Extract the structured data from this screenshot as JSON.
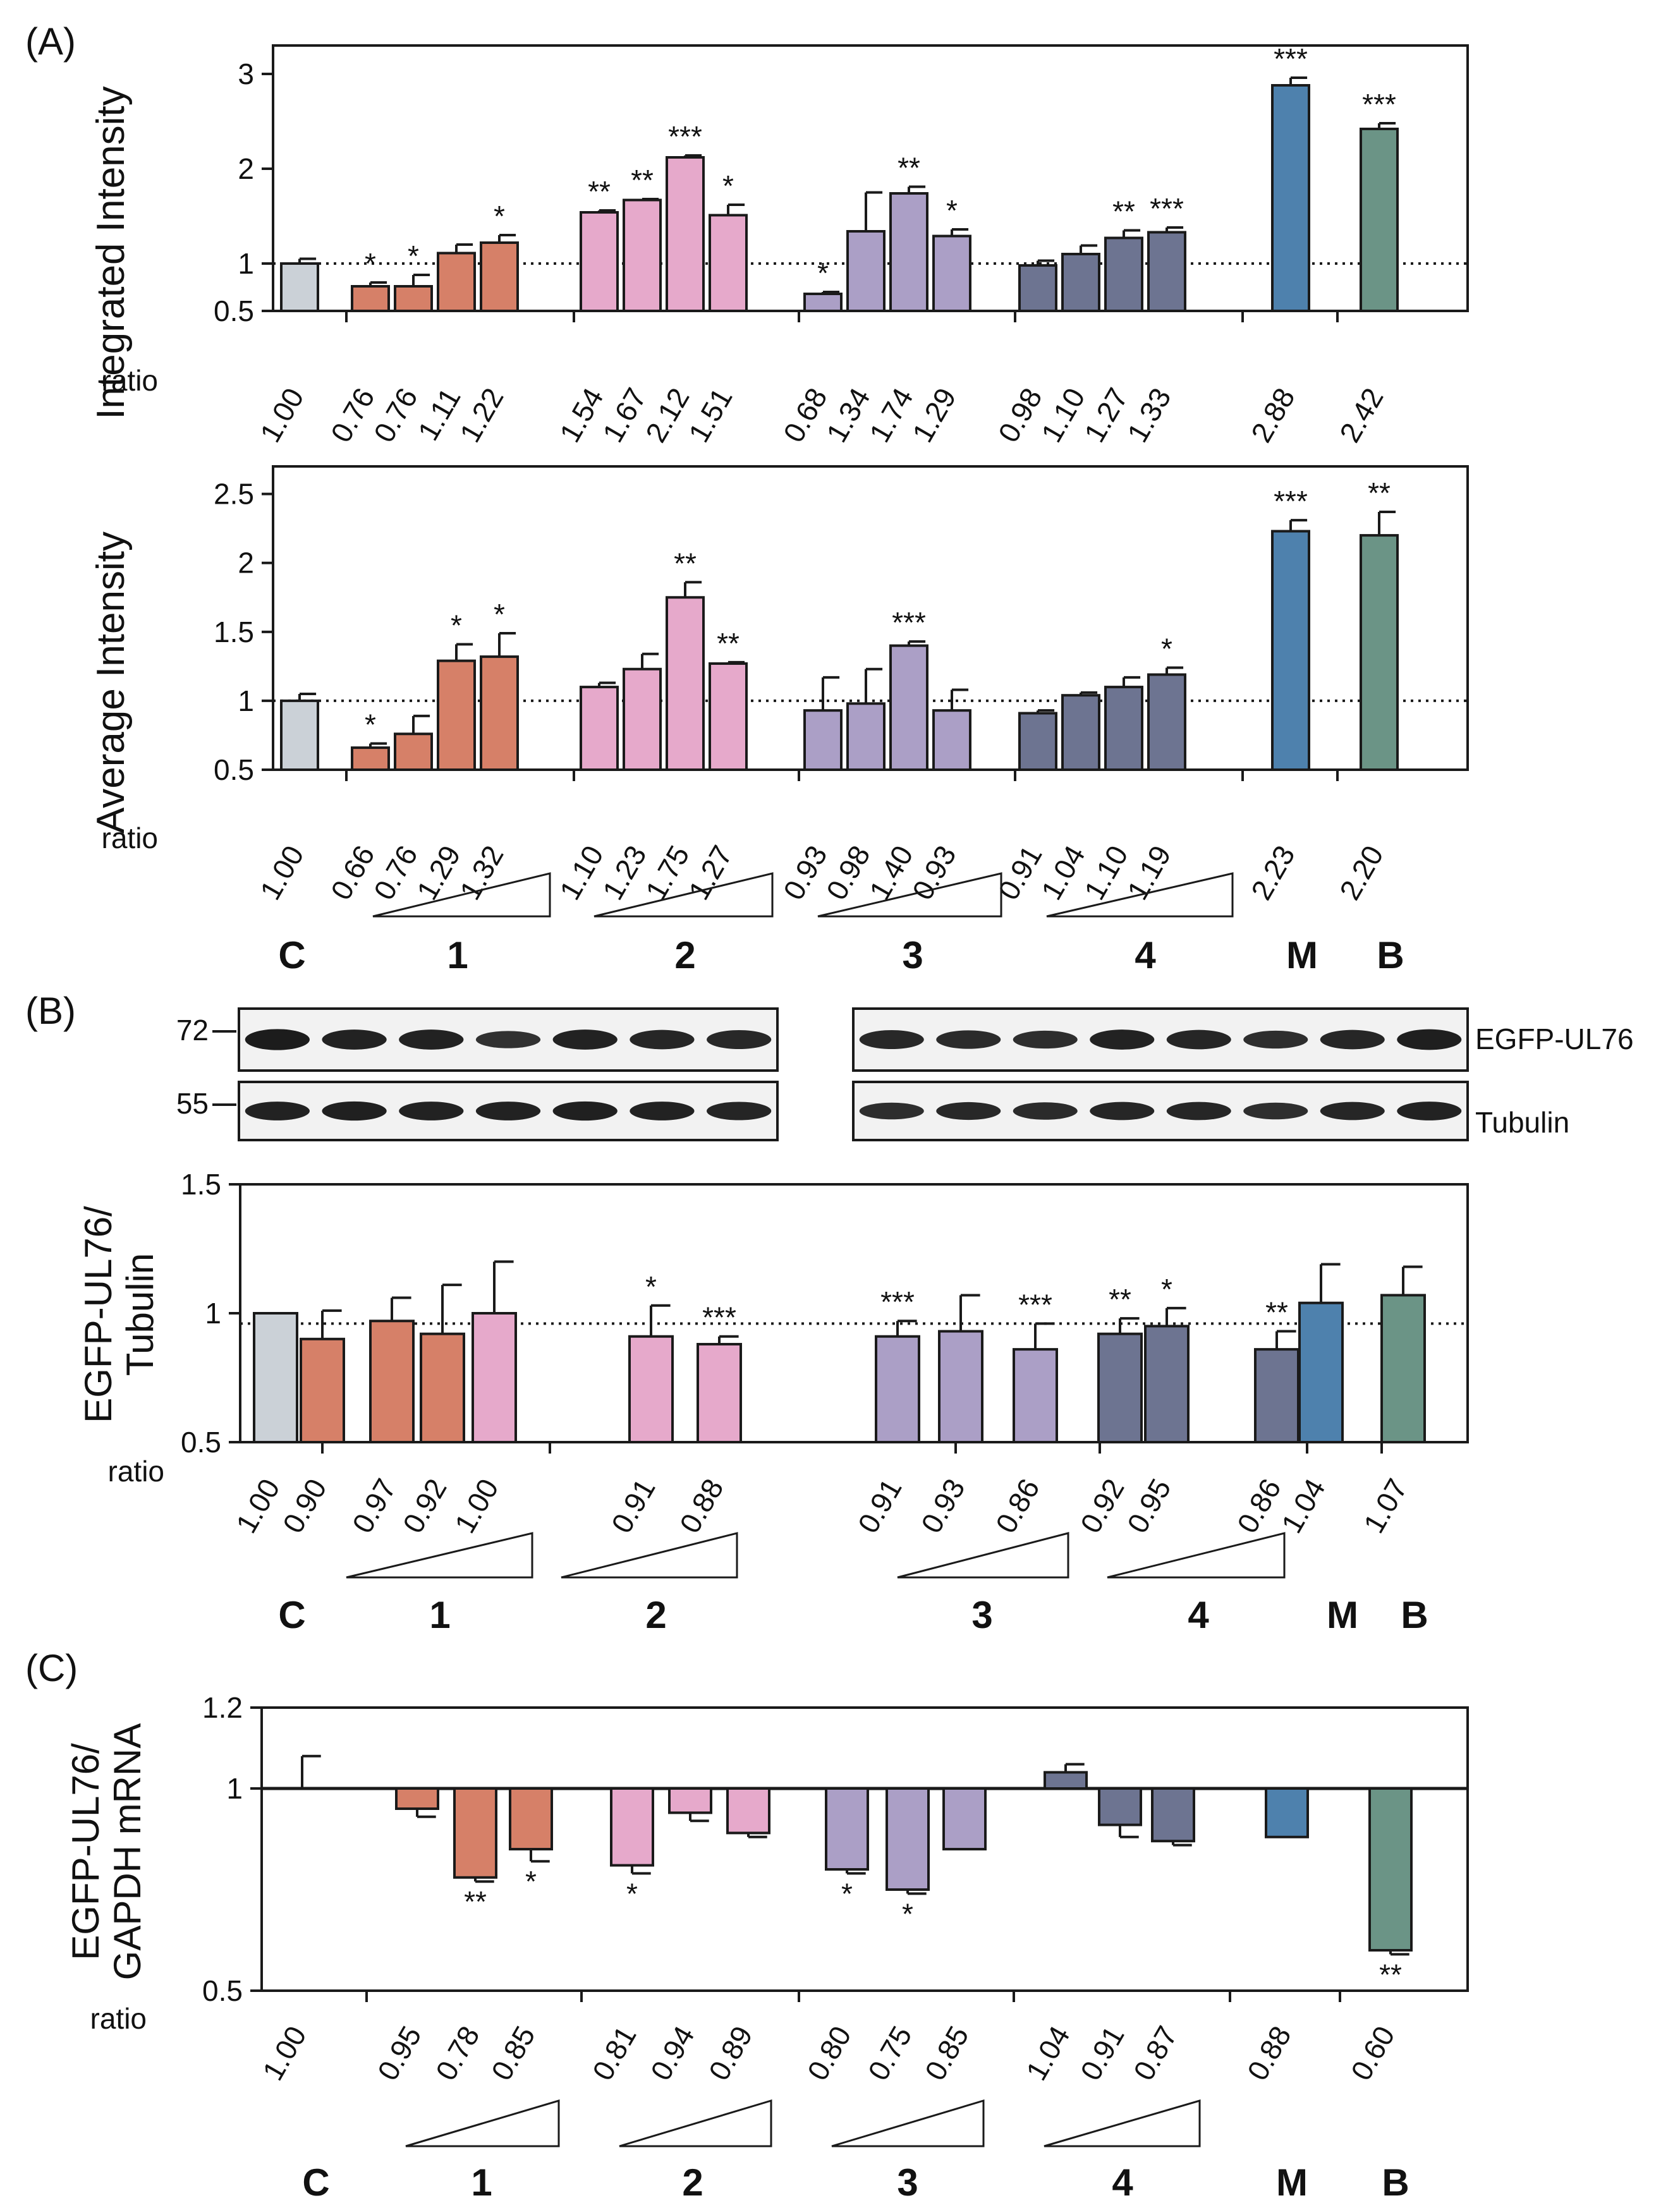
{
  "figure": {
    "panel_labels": {
      "A": "(A)",
      "B": "(B)",
      "C": "(C)"
    },
    "ratio_label": "ratio",
    "colors": {
      "C": "#cbd1d7",
      "1": "#d68068",
      "2": "#e6a9cb",
      "3": "#ab9fc6",
      "4": "#6d7491",
      "M": "#4e81ad",
      "B": "#6b9486",
      "axis": "#1a1a1a",
      "blot_bg": "#f2f2f2",
      "blot_band": "#1c1c1c"
    },
    "blot": {
      "labels": {
        "egfp": "EGFP-UL76",
        "tubulin": "Tubulin"
      },
      "markers": {
        "egfp": "72",
        "tubulin": "55"
      },
      "lanes_left": 7,
      "lanes_right": 8,
      "egfp_intensity_left": [
        1.0,
        0.95,
        0.95,
        0.82,
        0.95,
        0.92,
        0.9
      ],
      "egfp_intensity_right": [
        0.9,
        0.88,
        0.85,
        0.95,
        0.92,
        0.85,
        0.92,
        0.98
      ],
      "tubulin_intensity_left": [
        0.95,
        0.97,
        0.95,
        0.95,
        0.97,
        0.95,
        0.93
      ],
      "tubulin_intensity_right": [
        0.85,
        0.9,
        0.88,
        0.92,
        0.92,
        0.85,
        0.92,
        0.95
      ]
    }
  },
  "chart_data": [
    {
      "id": "A_integrated",
      "type": "bar",
      "ylabel": "Integrated Intensity",
      "ylim": [
        0.5,
        3.3
      ],
      "yticks": [
        0.5,
        1,
        2,
        3
      ],
      "ytick_labels": [
        "0.5",
        "1",
        "2",
        "3"
      ],
      "reference_line": 1.0,
      "reference_style": "dotted",
      "group_labels": [
        "C",
        "1",
        "2",
        "3",
        "4",
        "M",
        "B"
      ],
      "bars": [
        {
          "group": "C",
          "value": 1.0,
          "error": 0.05,
          "sig": "",
          "ratio": "1.00"
        },
        {
          "group": "1",
          "value": 0.76,
          "error": 0.04,
          "sig": "*",
          "ratio": "0.76"
        },
        {
          "group": "1",
          "value": 0.76,
          "error": 0.12,
          "sig": "*",
          "ratio": "0.76"
        },
        {
          "group": "1",
          "value": 1.11,
          "error": 0.09,
          "sig": "",
          "ratio": "1.11"
        },
        {
          "group": "1",
          "value": 1.22,
          "error": 0.08,
          "sig": "*",
          "ratio": "1.22"
        },
        {
          "group": "2",
          "value": 1.54,
          "error": 0.02,
          "sig": "**",
          "ratio": "1.54"
        },
        {
          "group": "2",
          "value": 1.67,
          "error": 0.01,
          "sig": "**",
          "ratio": "1.67"
        },
        {
          "group": "2",
          "value": 2.12,
          "error": 0.02,
          "sig": "***",
          "ratio": "2.12"
        },
        {
          "group": "2",
          "value": 1.51,
          "error": 0.11,
          "sig": "*",
          "ratio": "1.51"
        },
        {
          "group": "3",
          "value": 0.68,
          "error": 0.02,
          "sig": "*",
          "ratio": "0.68"
        },
        {
          "group": "3",
          "value": 1.34,
          "error": 0.41,
          "sig": "",
          "ratio": "1.34"
        },
        {
          "group": "3",
          "value": 1.74,
          "error": 0.07,
          "sig": "**",
          "ratio": "1.74"
        },
        {
          "group": "3",
          "value": 1.29,
          "error": 0.07,
          "sig": "*",
          "ratio": "1.29"
        },
        {
          "group": "4",
          "value": 0.98,
          "error": 0.05,
          "sig": "",
          "ratio": "0.98"
        },
        {
          "group": "4",
          "value": 1.1,
          "error": 0.09,
          "sig": "",
          "ratio": "1.10"
        },
        {
          "group": "4",
          "value": 1.27,
          "error": 0.08,
          "sig": "**",
          "ratio": "1.27"
        },
        {
          "group": "4",
          "value": 1.33,
          "error": 0.05,
          "sig": "***",
          "ratio": "1.33"
        },
        {
          "group": "M",
          "value": 2.88,
          "error": 0.08,
          "sig": "***",
          "ratio": "2.88"
        },
        {
          "group": "B",
          "value": 2.42,
          "error": 0.06,
          "sig": "***",
          "ratio": "2.42"
        }
      ]
    },
    {
      "id": "A_average",
      "type": "bar",
      "ylabel": "Average Intensity",
      "ylim": [
        0.5,
        2.7
      ],
      "yticks": [
        0.5,
        1,
        1.5,
        2,
        2.5
      ],
      "ytick_labels": [
        "0.5",
        "1",
        "1.5",
        "2",
        "2.5"
      ],
      "reference_line": 1.0,
      "reference_style": "dotted",
      "group_labels": [
        "C",
        "1",
        "2",
        "3",
        "4",
        "M",
        "B"
      ],
      "bars": [
        {
          "group": "C",
          "value": 1.0,
          "error": 0.05,
          "sig": "",
          "ratio": "1.00"
        },
        {
          "group": "1",
          "value": 0.66,
          "error": 0.03,
          "sig": "*",
          "ratio": "0.66"
        },
        {
          "group": "1",
          "value": 0.76,
          "error": 0.13,
          "sig": "",
          "ratio": "0.76"
        },
        {
          "group": "1",
          "value": 1.29,
          "error": 0.12,
          "sig": "*",
          "ratio": "1.29"
        },
        {
          "group": "1",
          "value": 1.32,
          "error": 0.17,
          "sig": "*",
          "ratio": "1.32"
        },
        {
          "group": "2",
          "value": 1.1,
          "error": 0.03,
          "sig": "",
          "ratio": "1.10"
        },
        {
          "group": "2",
          "value": 1.23,
          "error": 0.11,
          "sig": "",
          "ratio": "1.23"
        },
        {
          "group": "2",
          "value": 1.75,
          "error": 0.11,
          "sig": "**",
          "ratio": "1.75"
        },
        {
          "group": "2",
          "value": 1.27,
          "error": 0.01,
          "sig": "**",
          "ratio": "1.27"
        },
        {
          "group": "3",
          "value": 0.93,
          "error": 0.24,
          "sig": "",
          "ratio": "0.93"
        },
        {
          "group": "3",
          "value": 0.98,
          "error": 0.25,
          "sig": "",
          "ratio": "0.98"
        },
        {
          "group": "3",
          "value": 1.4,
          "error": 0.03,
          "sig": "***",
          "ratio": "1.40"
        },
        {
          "group": "3",
          "value": 0.93,
          "error": 0.15,
          "sig": "",
          "ratio": "0.93"
        },
        {
          "group": "4",
          "value": 0.91,
          "error": 0.02,
          "sig": "",
          "ratio": "0.91"
        },
        {
          "group": "4",
          "value": 1.04,
          "error": 0.02,
          "sig": "",
          "ratio": "1.04"
        },
        {
          "group": "4",
          "value": 1.1,
          "error": 0.07,
          "sig": "",
          "ratio": "1.10"
        },
        {
          "group": "4",
          "value": 1.19,
          "error": 0.05,
          "sig": "*",
          "ratio": "1.19"
        },
        {
          "group": "M",
          "value": 2.23,
          "error": 0.08,
          "sig": "***",
          "ratio": "2.23"
        },
        {
          "group": "B",
          "value": 2.2,
          "error": 0.17,
          "sig": "**",
          "ratio": "2.20"
        }
      ]
    },
    {
      "id": "B_ratio",
      "type": "bar",
      "ylabel": "EGFP-UL76/ Tubulin",
      "ylabel_lines": [
        "EGFP-UL76/",
        "Tubulin"
      ],
      "ylim": [
        0.5,
        1.5
      ],
      "yticks": [
        0.5,
        1,
        1.5
      ],
      "ytick_labels": [
        "0.5",
        "1",
        "1.5"
      ],
      "reference_line": 0.96,
      "reference_style": "dotted",
      "group_labels": [
        "C",
        "1",
        "2",
        "3",
        "4",
        "M",
        "B"
      ],
      "bars": [
        {
          "group": "C",
          "value": 1.0,
          "error": 0.0,
          "sig": "",
          "ratio": "1.00"
        },
        {
          "group": "1",
          "value": 0.9,
          "error": 0.11,
          "sig": "",
          "ratio": "0.90"
        },
        {
          "group": "1",
          "value": 0.97,
          "error": 0.09,
          "sig": "",
          "ratio": "0.97"
        },
        {
          "group": "1",
          "value": 0.92,
          "error": 0.19,
          "sig": "",
          "ratio": "0.92"
        },
        {
          "group": "2",
          "value": 1.0,
          "error": 0.2,
          "sig": "",
          "ratio": "1.00"
        },
        {
          "group": "2",
          "value": 0.91,
          "error": 0.12,
          "sig": "*",
          "ratio": "0.91"
        },
        {
          "group": "2",
          "value": 0.88,
          "error": 0.03,
          "sig": "***",
          "ratio": "0.88"
        },
        {
          "group": "3",
          "value": 0.91,
          "error": 0.06,
          "sig": "***",
          "ratio": "0.91"
        },
        {
          "group": "3",
          "value": 0.93,
          "error": 0.14,
          "sig": "",
          "ratio": "0.93"
        },
        {
          "group": "3",
          "value": 0.86,
          "error": 0.1,
          "sig": "***",
          "ratio": "0.86"
        },
        {
          "group": "4",
          "value": 0.92,
          "error": 0.06,
          "sig": "**",
          "ratio": "0.92"
        },
        {
          "group": "4",
          "value": 0.95,
          "error": 0.07,
          "sig": "*",
          "ratio": "0.95"
        },
        {
          "group": "4",
          "value": 0.86,
          "error": 0.07,
          "sig": "**",
          "ratio": "0.86"
        },
        {
          "group": "M",
          "value": 1.04,
          "error": 0.15,
          "sig": "",
          "ratio": "1.04"
        },
        {
          "group": "B",
          "value": 1.07,
          "error": 0.11,
          "sig": "",
          "ratio": "1.07"
        }
      ]
    },
    {
      "id": "C_mrna",
      "type": "bar",
      "ylabel": "EGFP-UL76/ GAPDH mRNA",
      "ylabel_lines": [
        "EGFP-UL76/",
        "GAPDH mRNA"
      ],
      "ylim": [
        0.5,
        1.2
      ],
      "yticks": [
        0.5,
        1,
        1.2
      ],
      "ytick_labels": [
        "0.5",
        "1",
        "1.2"
      ],
      "reference_line": 1.0,
      "reference_style": "solid",
      "group_labels": [
        "C",
        "1",
        "2",
        "3",
        "4",
        "M",
        "B"
      ],
      "bars": [
        {
          "group": "C",
          "value": 1.0,
          "error": 0.08,
          "sig": "",
          "ratio": "1.00"
        },
        {
          "group": "1",
          "value": 0.95,
          "error": 0.02,
          "sig": "",
          "ratio": "0.95"
        },
        {
          "group": "1",
          "value": 0.78,
          "error": 0.01,
          "sig": "**",
          "ratio": "0.78"
        },
        {
          "group": "1",
          "value": 0.85,
          "error": 0.03,
          "sig": "*",
          "ratio": "0.85"
        },
        {
          "group": "2",
          "value": 0.81,
          "error": 0.02,
          "sig": "*",
          "ratio": "0.81"
        },
        {
          "group": "2",
          "value": 0.94,
          "error": 0.02,
          "sig": "",
          "ratio": "0.94"
        },
        {
          "group": "2",
          "value": 0.89,
          "error": 0.01,
          "sig": "",
          "ratio": "0.89"
        },
        {
          "group": "3",
          "value": 0.8,
          "error": 0.01,
          "sig": "*",
          "ratio": "0.80"
        },
        {
          "group": "3",
          "value": 0.75,
          "error": 0.01,
          "sig": "*",
          "ratio": "0.75"
        },
        {
          "group": "3",
          "value": 0.85,
          "error": 0.0,
          "sig": "",
          "ratio": "0.85"
        },
        {
          "group": "4",
          "value": 1.04,
          "error": 0.02,
          "sig": "",
          "ratio": "1.04"
        },
        {
          "group": "4",
          "value": 0.91,
          "error": 0.03,
          "sig": "",
          "ratio": "0.91"
        },
        {
          "group": "4",
          "value": 0.87,
          "error": 0.01,
          "sig": "",
          "ratio": "0.87"
        },
        {
          "group": "M",
          "value": 0.88,
          "error": 0.0,
          "sig": "",
          "ratio": "0.88"
        },
        {
          "group": "B",
          "value": 0.6,
          "error": 0.01,
          "sig": "**",
          "ratio": "0.60"
        }
      ]
    }
  ]
}
